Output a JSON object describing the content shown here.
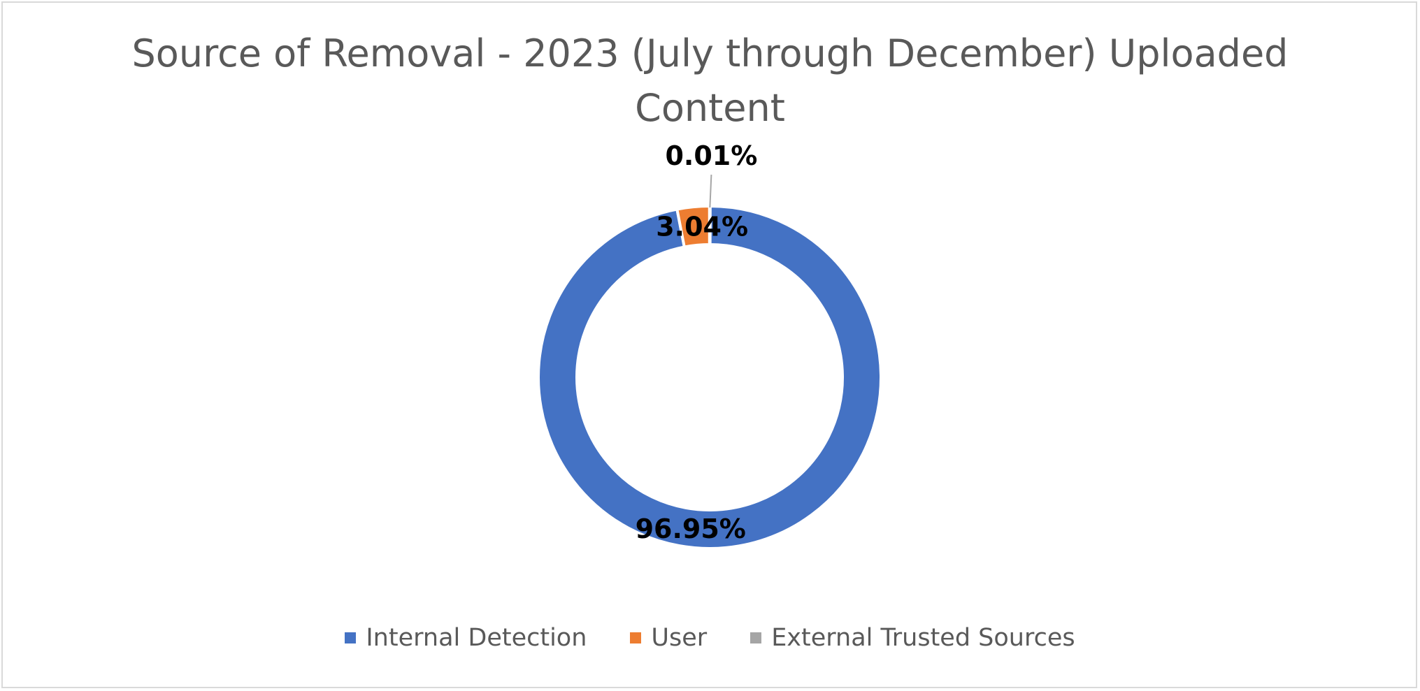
{
  "chart_data": {
    "type": "pie",
    "variant": "doughnut",
    "title": "Source of Removal - 2023 (July through December) Uploaded Content",
    "title_lines": [
      "Source of Removal - 2023 (July through December) Uploaded",
      "Content"
    ],
    "categories": [
      "Internal Detection",
      "User",
      "External Trusted Sources"
    ],
    "values": [
      96.95,
      3.04,
      0.01
    ],
    "value_labels": [
      "96.95%",
      "3.04%",
      "0.01%"
    ],
    "colors": [
      "#4472C4",
      "#ED7D31",
      "#A5A5A5"
    ],
    "legend_position": "bottom",
    "unit": "%"
  }
}
